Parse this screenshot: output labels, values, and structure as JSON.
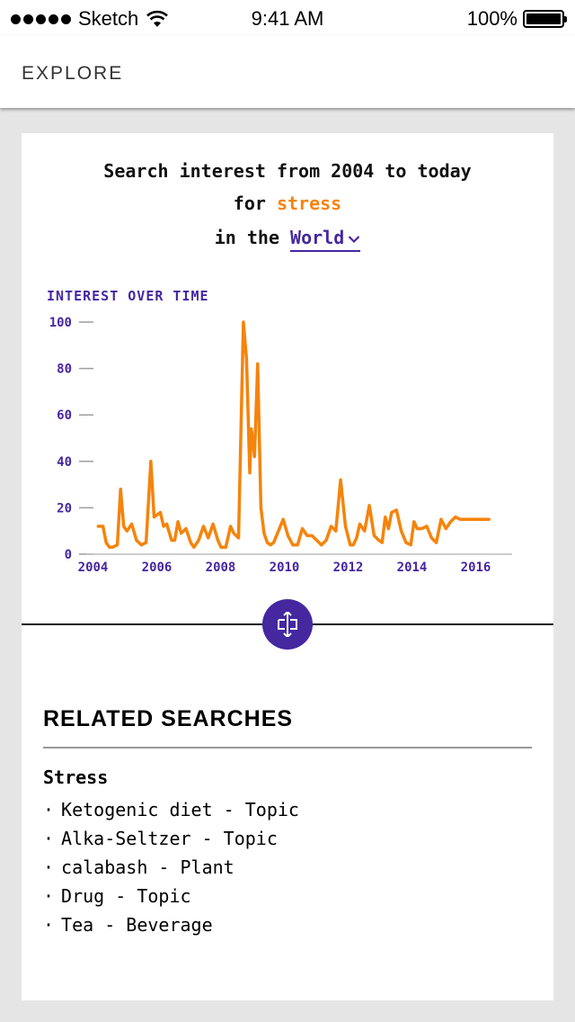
{
  "status_bar": {
    "carrier": "Sketch",
    "time": "9:41 AM",
    "battery": "100%"
  },
  "app_bar": {
    "title": "EXPLORE"
  },
  "headline": {
    "line1": "Search interest from 2004 to today",
    "line2_prefix": "for ",
    "term": "stress",
    "line3_prefix": "in the ",
    "region": "World"
  },
  "chart_title": "INTEREST OVER TIME",
  "chart_data": {
    "type": "line",
    "title": "INTEREST OVER TIME",
    "xlabel": "",
    "ylabel": "",
    "xlim": [
      2004,
      2016.6
    ],
    "ylim": [
      0,
      100
    ],
    "x_ticks": [
      "2004",
      "2006",
      "2008",
      "2010",
      "2012",
      "2014",
      "2016"
    ],
    "y_ticks": [
      "0",
      "20",
      "40",
      "60",
      "80",
      "100"
    ],
    "grid": false,
    "color": "#f5840c",
    "series": [
      {
        "x": [
          2004.15,
          2004.3,
          2004.4,
          2004.5,
          2004.6,
          2004.75,
          2004.85,
          2004.95,
          2005.05,
          2005.2,
          2005.35,
          2005.5,
          2005.65,
          2005.8,
          2005.9,
          2006.0,
          2006.1,
          2006.2,
          2006.3,
          2006.45,
          2006.55,
          2006.65,
          2006.75,
          2006.9,
          2007.05,
          2007.15,
          2007.3,
          2007.45,
          2007.6,
          2007.75,
          2007.9,
          2008.0,
          2008.15,
          2008.3,
          2008.4,
          2008.55,
          2008.7,
          2008.8,
          2008.9,
          2008.95,
          2009.05,
          2009.15,
          2009.25,
          2009.35,
          2009.45,
          2009.55,
          2009.65,
          2009.8,
          2009.95,
          2010.1,
          2010.25,
          2010.4,
          2010.55,
          2010.7,
          2010.85,
          2011.0,
          2011.15,
          2011.3,
          2011.45,
          2011.6,
          2011.75,
          2011.9,
          2012.05,
          2012.15,
          2012.25,
          2012.35,
          2012.5,
          2012.65,
          2012.8,
          2012.95,
          2013.05,
          2013.15,
          2013.25,
          2013.35,
          2013.5,
          2013.65,
          2013.8,
          2013.95,
          2014.05,
          2014.15,
          2014.3,
          2014.45,
          2014.6,
          2014.75,
          2014.9,
          2015.05,
          2015.2,
          2015.35,
          2015.5,
          2015.65,
          2015.8,
          2015.9,
          2016.0,
          2016.15,
          2016.3,
          2016.4
        ],
        "y": [
          12,
          12,
          5,
          3,
          3,
          4,
          28,
          12,
          10,
          13,
          6,
          4,
          5,
          40,
          16,
          17,
          18,
          12,
          13,
          6,
          6,
          14,
          9,
          11,
          5,
          3,
          6,
          12,
          7,
          13,
          6,
          3,
          3,
          12,
          9,
          7,
          100,
          84,
          35,
          54,
          42,
          82,
          20,
          9,
          5,
          4,
          5,
          10,
          15,
          8,
          4,
          4,
          11,
          8,
          8,
          6,
          4,
          6,
          12,
          10,
          32,
          12,
          4,
          4,
          7,
          13,
          10,
          21,
          8,
          6,
          5,
          16,
          11,
          18,
          19,
          10,
          5,
          4,
          14,
          11,
          11,
          12,
          7,
          5,
          15,
          11,
          14,
          16,
          15,
          15,
          15,
          15,
          15,
          15,
          15,
          15
        ]
      }
    ]
  },
  "related": {
    "title": "RELATED SEARCHES",
    "term": "Stress",
    "bullet": "·",
    "items": [
      "Ketogenic diet - Topic",
      "Alka-Seltzer - Topic",
      "calabash - Plant",
      "Drug - Topic",
      "Tea - Beverage"
    ]
  }
}
